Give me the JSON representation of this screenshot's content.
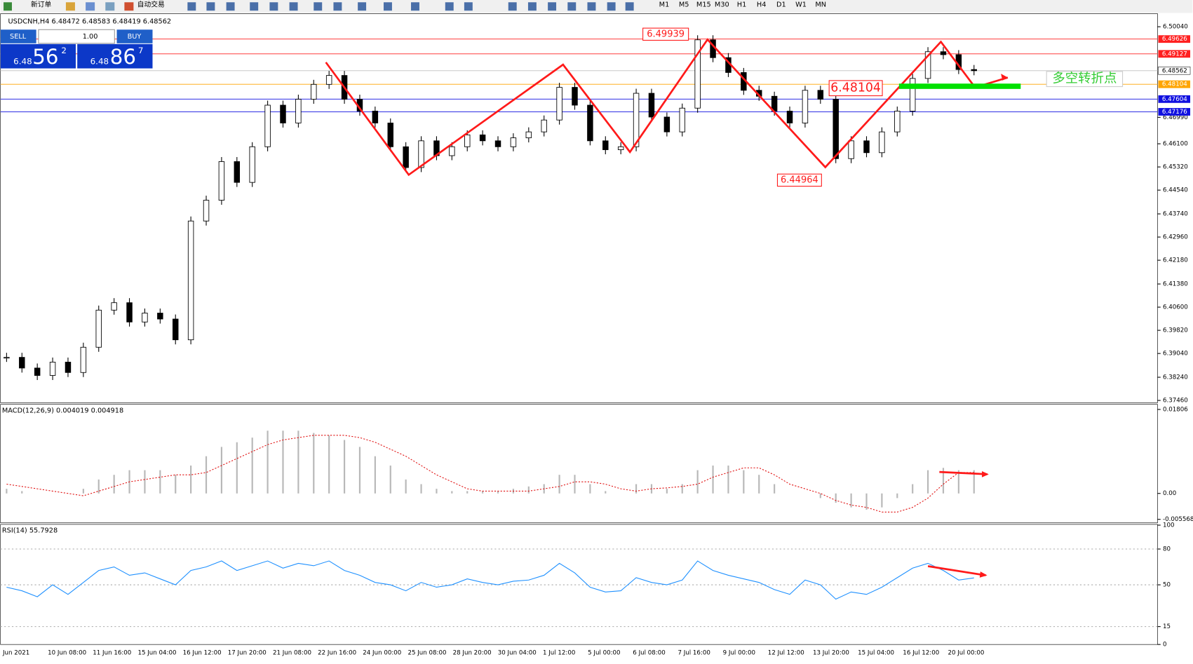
{
  "toolbar": {
    "new_order": "新订单",
    "auto_trading": "自动交易",
    "timeframes": [
      "M1",
      "M5",
      "M15",
      "M30",
      "H1",
      "H4",
      "D1",
      "W1",
      "MN"
    ]
  },
  "trade_panel": {
    "sell": "SELL",
    "buy": "BUY",
    "volume": "1.00",
    "sell_big": "6.48",
    "sell_pips": "56",
    "sell_frac": "2",
    "buy_big": "6.48",
    "buy_pips": "86",
    "buy_frac": "7"
  },
  "chart": {
    "header": "USDCNH,H4  6.48472 6.48583 6.48419 6.48562",
    "ylim": [
      6.3738,
      6.5048
    ],
    "yticks": [
      {
        "value": 6.5004,
        "label": "6.50040"
      },
      {
        "value": 6.4699,
        "label": "6.46990"
      },
      {
        "value": 6.461,
        "label": "6.46100"
      },
      {
        "value": 6.4532,
        "label": "6.45320"
      },
      {
        "value": 6.4454,
        "label": "6.44540"
      },
      {
        "value": 6.4374,
        "label": "6.43740"
      },
      {
        "value": 6.4296,
        "label": "6.42960"
      },
      {
        "value": 6.4218,
        "label": "6.42180"
      },
      {
        "value": 6.4138,
        "label": "6.41380"
      },
      {
        "value": 6.406,
        "label": "6.40600"
      },
      {
        "value": 6.3982,
        "label": "6.39820"
      },
      {
        "value": 6.3904,
        "label": "6.39040"
      },
      {
        "value": 6.3824,
        "label": "6.38240"
      },
      {
        "value": 6.3746,
        "label": "6.37460"
      }
    ],
    "levels": [
      {
        "value": 6.49626,
        "color": "#ff2020"
      },
      {
        "value": 6.49127,
        "color": "#ff2020"
      },
      {
        "value": 6.48562,
        "color": "#c0c0c0"
      },
      {
        "value": 6.48104,
        "color": "#ffa500"
      },
      {
        "value": 6.47604,
        "color": "#1010e0"
      },
      {
        "value": 6.47176,
        "color": "#1010e0"
      }
    ],
    "closes": [
      6.3891,
      6.3855,
      6.383,
      6.3875,
      6.384,
      6.3925,
      6.405,
      6.4075,
      6.401,
      6.404,
      6.402,
      6.395,
      6.435,
      6.442,
      6.455,
      6.448,
      6.46,
      6.474,
      6.468,
      6.476,
      6.481,
      6.484,
      6.476,
      6.472,
      6.468,
      6.46,
      6.453,
      6.462,
      6.457,
      6.46,
      6.464,
      6.462,
      6.46,
      6.463,
      6.465,
      6.469,
      6.48,
      6.474,
      6.462,
      6.459,
      6.46,
      6.478,
      6.47,
      6.465,
      6.473,
      6.496,
      6.49,
      6.485,
      6.479,
      6.477,
      6.472,
      6.468,
      6.479,
      6.476,
      6.456,
      6.462,
      6.458,
      6.465,
      6.472,
      6.483,
      6.492,
      6.491,
      6.486,
      6.4856
    ],
    "annotations": [
      "6.49939",
      "6.48104",
      "6.44964",
      "多空转折点"
    ]
  },
  "macd": {
    "label": "MACD(12,26,9) 0.004019 0.004918",
    "ylim": [
      -0.00633,
      0.019
    ],
    "yticks": [
      0.01806,
      {
        "value": 0,
        "label": "0.00"
      },
      -0.005568
    ],
    "histogram": [
      0.001,
      0.0005,
      0,
      0,
      0,
      0.001,
      0.003,
      0.004,
      0.005,
      0.005,
      0.005,
      0.004,
      0.006,
      0.008,
      0.01,
      0.011,
      0.012,
      0.0135,
      0.0135,
      0.0135,
      0.013,
      0.0125,
      0.0115,
      0.01,
      0.008,
      0.006,
      0.003,
      0.002,
      0.001,
      0.0005,
      0.0005,
      0.0005,
      0.0005,
      0.001,
      0.0015,
      0.002,
      0.004,
      0.004,
      0.002,
      0.0005,
      0,
      0.002,
      0.002,
      0.001,
      0.002,
      0.005,
      0.006,
      0.006,
      0.005,
      0.004,
      0.002,
      0,
      0,
      -0.001,
      -0.002,
      -0.003,
      -0.0035,
      -0.003,
      -0.001,
      0.002,
      0.005,
      0.0055,
      0.005,
      0.005
    ],
    "signal": [
      0.002,
      0.0015,
      0.001,
      0.0005,
      0,
      -0.0005,
      0.0005,
      0.0015,
      0.0025,
      0.003,
      0.0035,
      0.004,
      0.004,
      0.0045,
      0.006,
      0.0075,
      0.009,
      0.0105,
      0.0115,
      0.012,
      0.0125,
      0.0125,
      0.0125,
      0.012,
      0.011,
      0.0095,
      0.008,
      0.006,
      0.004,
      0.0025,
      0.001,
      0.0005,
      0.0005,
      0.0005,
      0.0005,
      0.001,
      0.0015,
      0.0025,
      0.0025,
      0.002,
      0.001,
      0.0005,
      0.001,
      0.0012,
      0.0015,
      0.002,
      0.0035,
      0.0045,
      0.0055,
      0.0055,
      0.004,
      0.002,
      0.001,
      0,
      -0.0015,
      -0.0025,
      -0.003,
      -0.004,
      -0.004,
      -0.003,
      -0.001,
      0.002,
      0.0045,
      0.0045
    ]
  },
  "rsi": {
    "label": "RSI(14) 55.7928",
    "ylim": [
      0,
      100
    ],
    "yticks": [
      100,
      80,
      50,
      15,
      0
    ],
    "values": [
      48,
      45,
      40,
      50,
      42,
      52,
      62,
      65,
      58,
      60,
      55,
      50,
      62,
      65,
      70,
      62,
      66,
      70,
      64,
      68,
      66,
      70,
      62,
      58,
      52,
      50,
      45,
      52,
      48,
      50,
      55,
      52,
      50,
      53,
      54,
      58,
      68,
      60,
      48,
      44,
      45,
      56,
      52,
      50,
      54,
      70,
      62,
      58,
      55,
      52,
      46,
      42,
      54,
      50,
      38,
      44,
      42,
      48,
      56,
      64,
      68,
      62,
      54,
      55.8
    ]
  },
  "time_axis": [
    "Jun 2021",
    "10 Jun 08:00",
    "11 Jun 16:00",
    "15 Jun 04:00",
    "16 Jun 12:00",
    "17 Jun 20:00",
    "21 Jun 08:00",
    "22 Jun 16:00",
    "24 Jun 00:00",
    "25 Jun 08:00",
    "28 Jun 20:00",
    "30 Jun 04:00",
    "1 Jul 12:00",
    "5 Jul 00:00",
    "6 Jul 08:00",
    "7 Jul 16:00",
    "9 Jul 00:00",
    "12 Jul 12:00",
    "13 Jul 20:00",
    "15 Jul 04:00",
    "16 Jul 12:00",
    "20 Jul 00:00"
  ]
}
